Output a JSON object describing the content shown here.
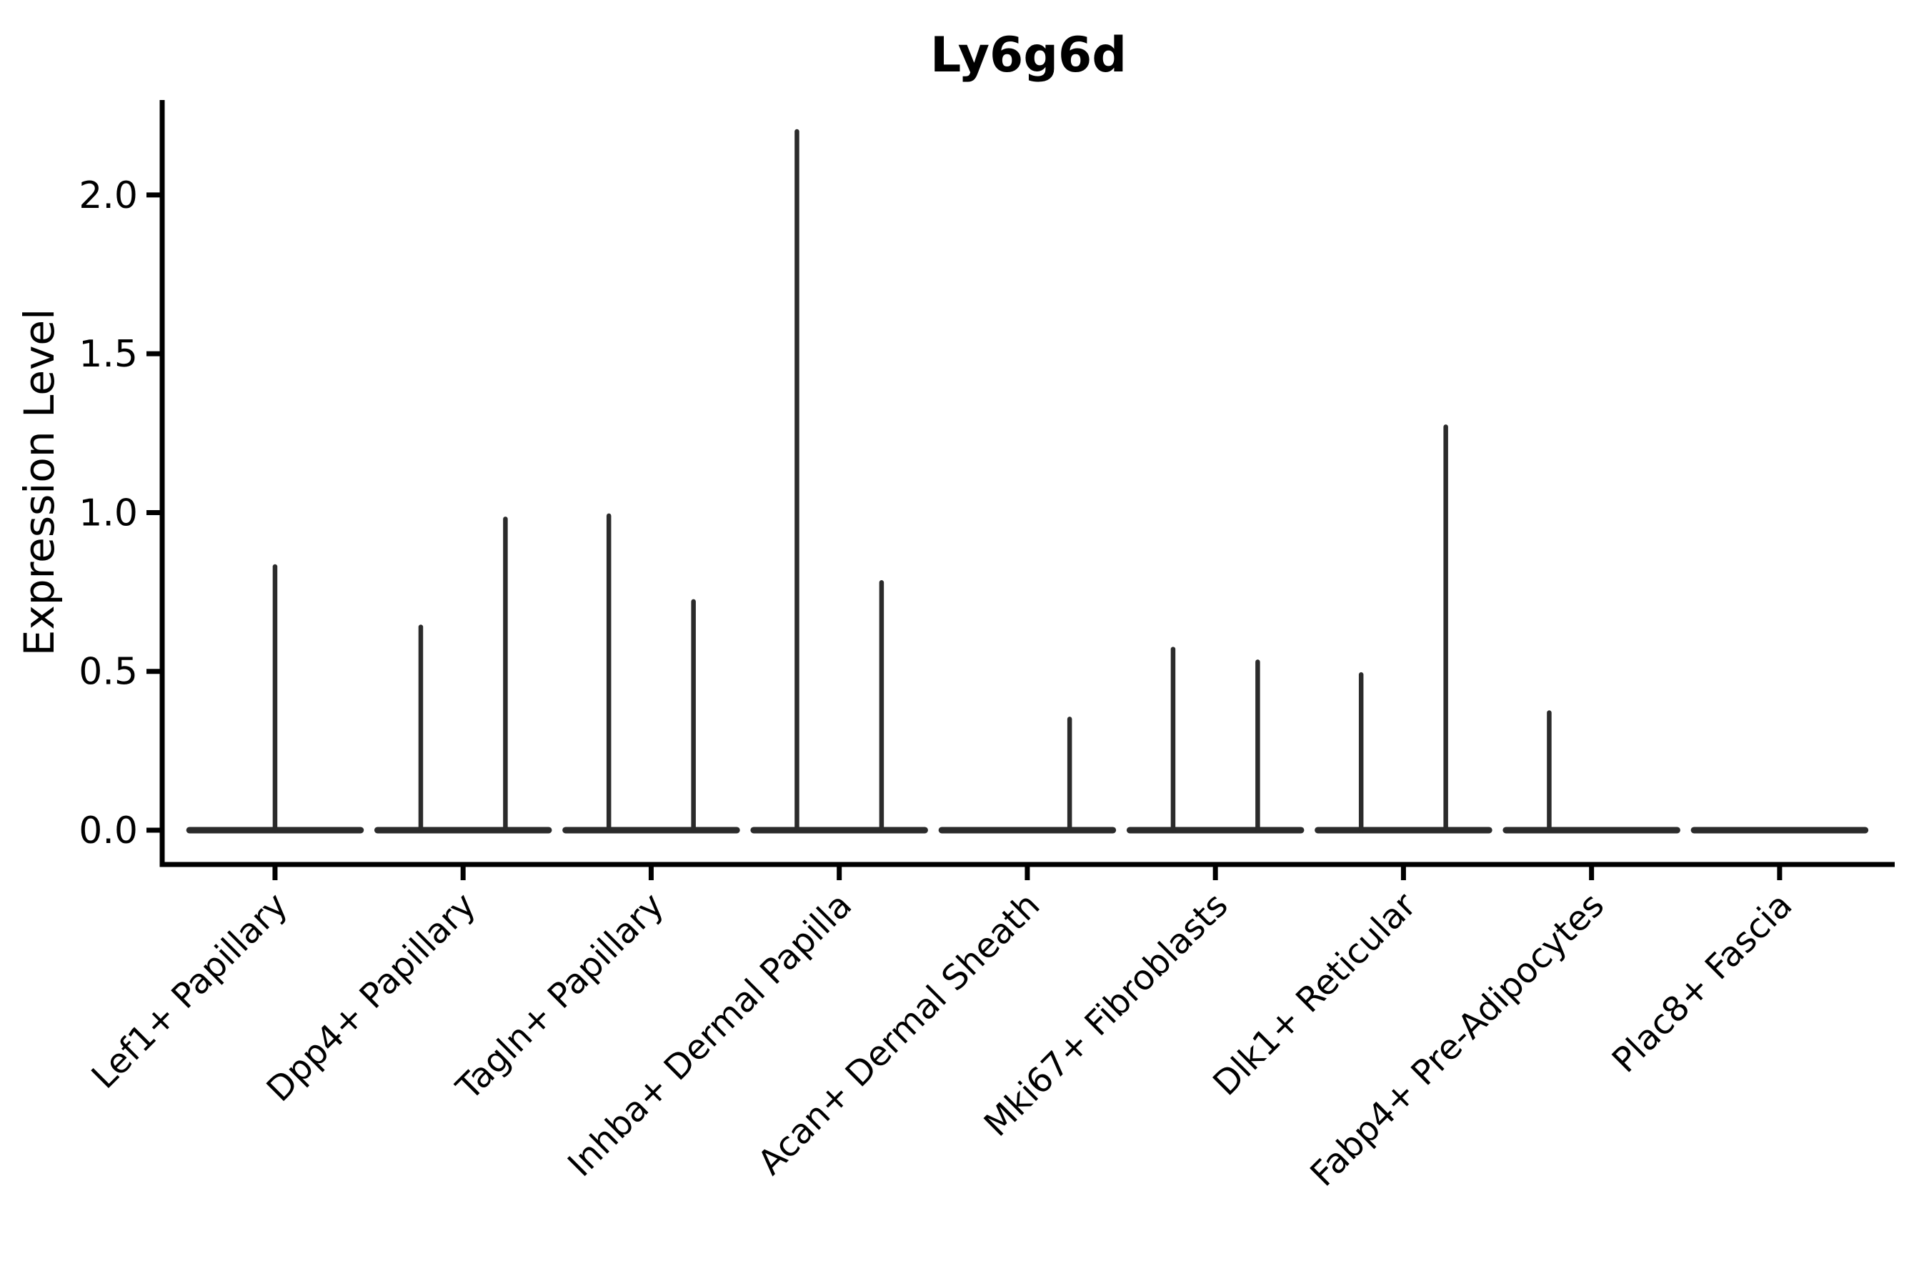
{
  "chart_data": {
    "type": "violin",
    "title": "Ly6g6d",
    "ylabel": "Expression Level",
    "xlabel": "",
    "grid": false,
    "legend": "none",
    "yticks": [
      0.0,
      0.5,
      1.0,
      1.5,
      2.0
    ],
    "ytick_labels": [
      "0.0",
      "0.5",
      "1.0",
      "1.5",
      "2.0"
    ],
    "ylim": [
      -0.108,
      2.299
    ],
    "xlim": [
      -0.6,
      8.612
    ],
    "x_tick_rotation_deg": 45,
    "categories": [
      "Lef1+ Papillary",
      "Dpp4+ Papillary",
      "Tagln+ Papillary",
      "Inhba+ Dermal Papilla",
      "Acan+ Dermal Sheath",
      "Mki67+ Fibroblasts",
      "Dlk1+ Reticular",
      "Fabp4+ Pre-Adipocytes",
      "Plac8+ Fascia"
    ],
    "violins": [
      {
        "category": "Lef1+ Papillary",
        "base_halfwidth": 0.455,
        "baseline_value": 0.0,
        "spikes": [
          {
            "offset": 0.0,
            "max": 0.83
          }
        ]
      },
      {
        "category": "Dpp4+ Papillary",
        "base_halfwidth": 0.455,
        "baseline_value": 0.0,
        "spikes": [
          {
            "offset": -0.225,
            "max": 0.64
          },
          {
            "offset": 0.225,
            "max": 0.98
          }
        ]
      },
      {
        "category": "Tagln+ Papillary",
        "base_halfwidth": 0.455,
        "baseline_value": 0.0,
        "spikes": [
          {
            "offset": -0.225,
            "max": 0.99
          },
          {
            "offset": 0.225,
            "max": 0.72
          }
        ]
      },
      {
        "category": "Inhba+ Dermal Papilla",
        "base_halfwidth": 0.455,
        "baseline_value": 0.0,
        "spikes": [
          {
            "offset": -0.225,
            "max": 2.2
          },
          {
            "offset": 0.225,
            "max": 0.78
          }
        ]
      },
      {
        "category": "Acan+ Dermal Sheath",
        "base_halfwidth": 0.455,
        "baseline_value": 0.0,
        "spikes": [
          {
            "offset": 0.225,
            "max": 0.35
          }
        ]
      },
      {
        "category": "Mki67+ Fibroblasts",
        "base_halfwidth": 0.455,
        "baseline_value": 0.0,
        "spikes": [
          {
            "offset": -0.225,
            "max": 0.57
          },
          {
            "offset": 0.225,
            "max": 0.53
          }
        ]
      },
      {
        "category": "Dlk1+ Reticular",
        "base_halfwidth": 0.455,
        "baseline_value": 0.0,
        "spikes": [
          {
            "offset": -0.225,
            "max": 0.49
          },
          {
            "offset": 0.225,
            "max": 1.27
          }
        ]
      },
      {
        "category": "Fabp4+ Pre-Adipocytes",
        "base_halfwidth": 0.455,
        "baseline_value": 0.0,
        "spikes": [
          {
            "offset": -0.225,
            "max": 0.37
          }
        ]
      },
      {
        "category": "Plac8+ Fascia",
        "base_halfwidth": 0.455,
        "baseline_value": 0.0,
        "spikes": []
      }
    ],
    "colors": {
      "violin_line": "#2b2b2b",
      "axis": "#000000",
      "text": "#000000",
      "background": "#ffffff"
    }
  }
}
